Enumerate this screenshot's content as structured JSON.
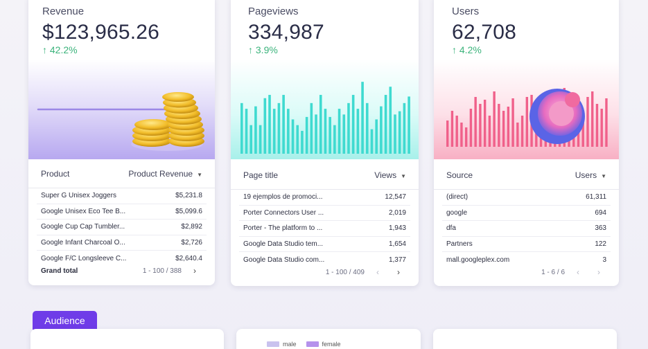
{
  "colors": {
    "accent": "#6f3ce8",
    "positive": "#3bb37b",
    "revenue_fill": "#b7a8f0",
    "pageviews_bar": "#3fdad0",
    "users_bar": "#f0608a",
    "male": "#c9c2ee",
    "female": "#b592ec"
  },
  "revenue": {
    "title": "Revenue",
    "value": "$123,965.26",
    "delta": "42.2%",
    "delta_arrow": "up-arrow-icon",
    "table": {
      "col1": "Product",
      "col2": "Product Revenue",
      "rows": [
        {
          "name": "Super G Unisex Joggers",
          "value": "$5,231.8"
        },
        {
          "name": "Google Unisex Eco Tee B...",
          "value": "$5,099.6"
        },
        {
          "name": "Google Cup Cap Tumbler...",
          "value": "$2,892"
        },
        {
          "name": "Google Infant Charcoal O...",
          "value": "$2,726"
        },
        {
          "name": "Google F/C Longsleeve C...",
          "value": "$2,640.4"
        }
      ],
      "total_label": "Grand total",
      "pagination": "1 - 100 / 388"
    }
  },
  "pageviews": {
    "title": "Pageviews",
    "value": "334,987",
    "delta": "3.9%",
    "bars": [
      0.62,
      0.55,
      0.35,
      0.58,
      0.35,
      0.68,
      0.72,
      0.55,
      0.62,
      0.72,
      0.55,
      0.42,
      0.35,
      0.28,
      0.45,
      0.62,
      0.48,
      0.72,
      0.55,
      0.45,
      0.35,
      0.55,
      0.48,
      0.62,
      0.72,
      0.55,
      0.88,
      0.62,
      0.3,
      0.42,
      0.58,
      0.72,
      0.82,
      0.48,
      0.52,
      0.62,
      0.7
    ],
    "table": {
      "col1": "Page title",
      "col2": "Views",
      "rows": [
        {
          "name": "19 ejemplos de promoci...",
          "value": "12,547"
        },
        {
          "name": "Porter Connectors User ...",
          "value": "2,019"
        },
        {
          "name": "Porter - The platform to ...",
          "value": "1,943"
        },
        {
          "name": "Google Data Studio tem...",
          "value": "1,654"
        },
        {
          "name": "Google Data Studio com...",
          "value": "1,377"
        }
      ],
      "pagination": "1 - 100 / 409"
    }
  },
  "users": {
    "title": "Users",
    "value": "62,708",
    "delta": "4.2%",
    "bars": [
      0.38,
      0.52,
      0.45,
      0.35,
      0.28,
      0.55,
      0.72,
      0.62,
      0.68,
      0.45,
      0.8,
      0.62,
      0.52,
      0.58,
      0.7,
      0.35,
      0.45,
      0.72,
      0.75,
      0.55,
      0.68,
      0.45,
      0.6,
      0.72,
      0.62,
      0.85,
      0.7,
      0.5,
      0.55,
      0.48,
      0.72,
      0.8,
      0.62,
      0.55,
      0.7
    ],
    "table": {
      "col1": "Source",
      "col2": "Users",
      "rows": [
        {
          "name": "(direct)",
          "value": "61,311"
        },
        {
          "name": "google",
          "value": "694"
        },
        {
          "name": "dfa",
          "value": "363"
        },
        {
          "name": "Partners",
          "value": "122"
        },
        {
          "name": "mall.googleplex.com",
          "value": "3"
        }
      ],
      "pagination": "1 - 6 / 6"
    }
  },
  "audience": {
    "tab_label": "Audience",
    "legend_male": "male",
    "legend_female": "female"
  }
}
